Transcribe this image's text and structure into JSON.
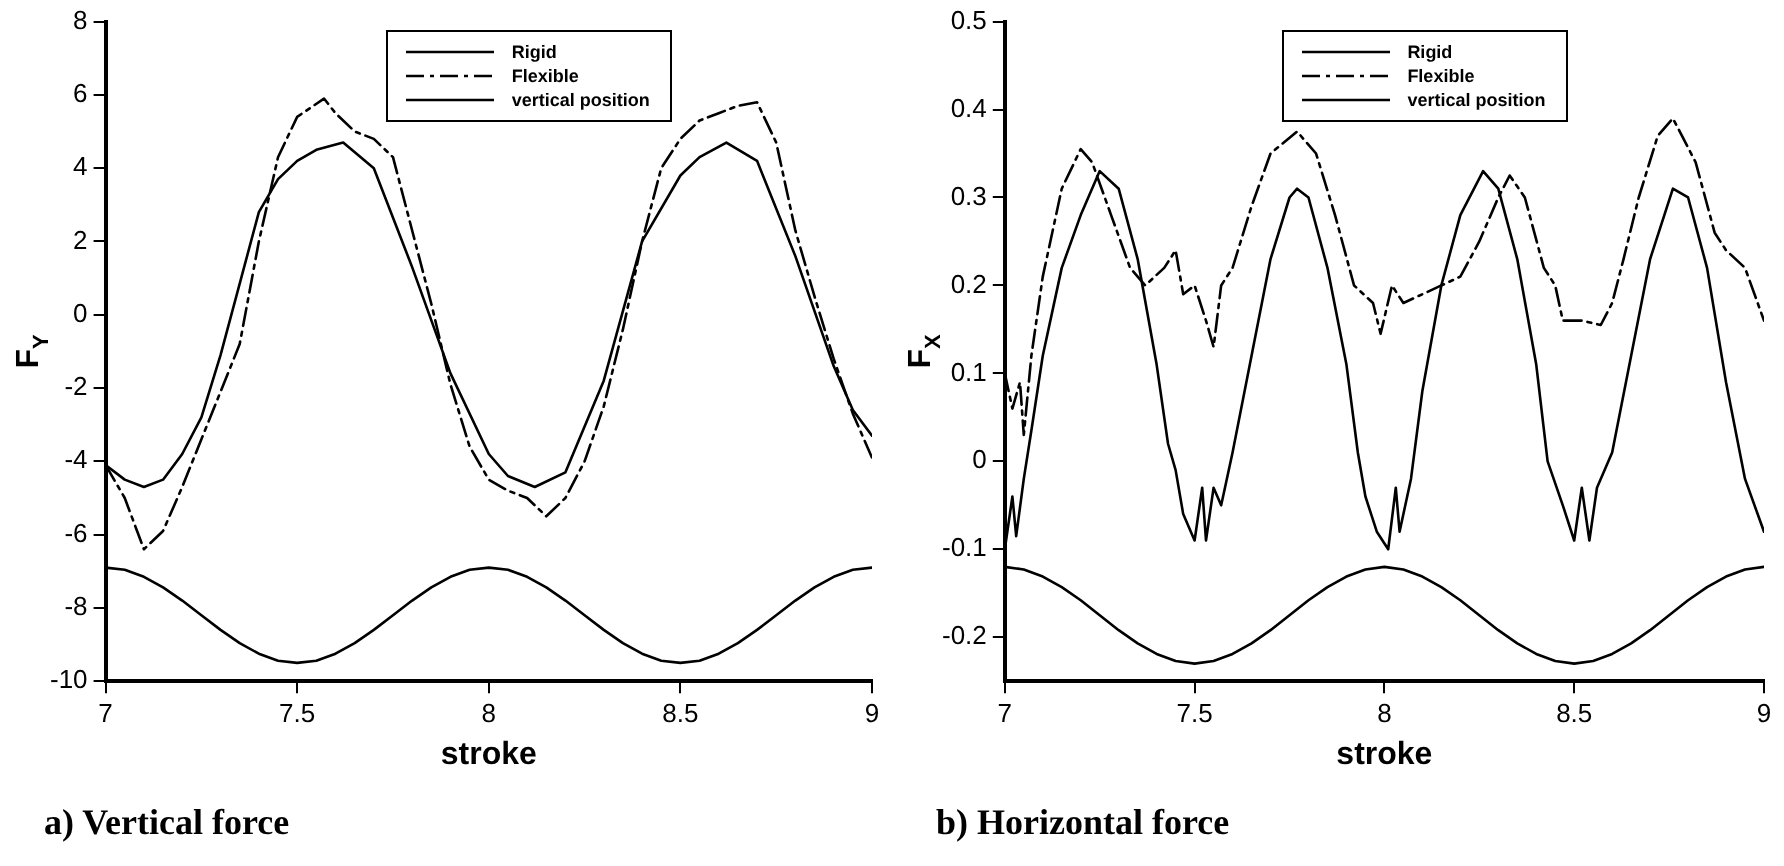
{
  "chart_data": [
    {
      "type": "line",
      "title": "a) Vertical force",
      "xlabel": "stroke",
      "ylabel": "F$_{Y}$",
      "xlim": [
        7,
        9
      ],
      "xticks": [
        7,
        7.5,
        8,
        8.5,
        9
      ],
      "ylim": [
        -10,
        8
      ],
      "yticks": [
        -10,
        -8,
        -6,
        -4,
        -2,
        0,
        2,
        4,
        6,
        8
      ],
      "grid": false,
      "legend": "top",
      "series": [
        {
          "name": "Rigid",
          "color": "#000000",
          "line_style": "solid",
          "x": [
            7,
            7.05,
            7.1,
            7.15,
            7.2,
            7.25,
            7.3,
            7.4,
            7.45,
            7.5,
            7.55,
            7.62,
            7.7,
            7.8,
            7.9,
            8,
            8.05,
            8.12,
            8.2,
            8.3,
            8.4,
            8.5,
            8.55,
            8.62,
            8.7,
            8.8,
            8.9,
            8.95,
            9
          ],
          "values": [
            -4.1,
            -4.5,
            -4.7,
            -4.5,
            -3.8,
            -2.8,
            -1.1,
            2.8,
            3.7,
            4.2,
            4.5,
            4.7,
            4.0,
            1.3,
            -1.6,
            -3.8,
            -4.4,
            -4.7,
            -4.3,
            -1.8,
            2.0,
            3.8,
            4.3,
            4.7,
            4.2,
            1.6,
            -1.4,
            -2.6,
            -3.3
          ]
        },
        {
          "name": "Flexible",
          "color": "#000000",
          "line_style": "dashed",
          "x": [
            7,
            7.05,
            7.1,
            7.15,
            7.2,
            7.3,
            7.35,
            7.4,
            7.45,
            7.5,
            7.57,
            7.6,
            7.65,
            7.7,
            7.75,
            7.8,
            7.85,
            7.9,
            7.95,
            8,
            8.05,
            8.1,
            8.15,
            8.2,
            8.25,
            8.3,
            8.35,
            8.4,
            8.45,
            8.5,
            8.55,
            8.6,
            8.65,
            8.7,
            8.75,
            8.8,
            8.85,
            8.9,
            8.95,
            9
          ],
          "values": [
            -4.1,
            -5.0,
            -6.4,
            -5.9,
            -4.7,
            -2.1,
            -0.8,
            2.0,
            4.3,
            5.4,
            5.9,
            5.5,
            5.0,
            4.8,
            4.3,
            2.3,
            0.3,
            -1.9,
            -3.6,
            -4.5,
            -4.8,
            -5.0,
            -5.5,
            -5.0,
            -4.0,
            -2.5,
            -0.4,
            2.0,
            4.0,
            4.8,
            5.3,
            5.5,
            5.7,
            5.8,
            4.7,
            2.3,
            0.5,
            -1.2,
            -2.7,
            -3.9
          ]
        },
        {
          "name": "vertical position",
          "color": "#000000",
          "line_style": "solid",
          "x": [
            7,
            7.05,
            7.1,
            7.15,
            7.2,
            7.25,
            7.3,
            7.35,
            7.4,
            7.45,
            7.5,
            7.55,
            7.6,
            7.65,
            7.7,
            7.75,
            7.8,
            7.85,
            7.9,
            7.95,
            8,
            8.05,
            8.1,
            8.15,
            8.2,
            8.25,
            8.3,
            8.35,
            8.4,
            8.45,
            8.5,
            8.55,
            8.6,
            8.65,
            8.7,
            8.75,
            8.8,
            8.85,
            8.9,
            8.95,
            9
          ],
          "values": [
            -6.9,
            -6.96,
            -7.15,
            -7.44,
            -7.8,
            -8.2,
            -8.6,
            -8.96,
            -9.25,
            -9.44,
            -9.5,
            -9.44,
            -9.25,
            -8.96,
            -8.6,
            -8.2,
            -7.8,
            -7.44,
            -7.15,
            -6.96,
            -6.9,
            -6.96,
            -7.15,
            -7.44,
            -7.8,
            -8.2,
            -8.6,
            -8.96,
            -9.25,
            -9.44,
            -9.5,
            -9.44,
            -9.25,
            -8.96,
            -8.6,
            -8.2,
            -7.8,
            -7.44,
            -7.15,
            -6.96,
            -6.9
          ]
        }
      ]
    },
    {
      "type": "line",
      "title": "b) Horizontal force",
      "xlabel": "stroke",
      "ylabel": "F$_{X}$",
      "xlim": [
        7,
        9
      ],
      "xticks": [
        7,
        7.5,
        8,
        8.5,
        9
      ],
      "ylim": [
        -0.25,
        0.5
      ],
      "yticks": [
        -0.2,
        -0.1,
        0,
        0.1,
        0.2,
        0.3,
        0.4,
        0.5
      ],
      "grid": false,
      "legend": "top",
      "series": [
        {
          "name": "Rigid",
          "color": "#000000",
          "line_style": "solid",
          "x": [
            7,
            7.02,
            7.03,
            7.05,
            7.07,
            7.1,
            7.15,
            7.2,
            7.25,
            7.3,
            7.35,
            7.4,
            7.43,
            7.45,
            7.47,
            7.5,
            7.52,
            7.53,
            7.55,
            7.57,
            7.6,
            7.65,
            7.7,
            7.75,
            7.77,
            7.8,
            7.85,
            7.9,
            7.93,
            7.95,
            7.98,
            8.01,
            8.03,
            8.04,
            8.07,
            8.1,
            8.15,
            8.2,
            8.26,
            8.3,
            8.35,
            8.4,
            8.43,
            8.47,
            8.5,
            8.52,
            8.54,
            8.56,
            8.6,
            8.65,
            8.7,
            8.76,
            8.8,
            8.85,
            8.9,
            8.95,
            9
          ],
          "values": [
            -0.1,
            -0.04,
            -0.085,
            -0.02,
            0.035,
            0.12,
            0.22,
            0.28,
            0.33,
            0.31,
            0.23,
            0.11,
            0.02,
            -0.01,
            -0.06,
            -0.09,
            -0.03,
            -0.09,
            -0.03,
            -0.05,
            0.01,
            0.12,
            0.23,
            0.3,
            0.31,
            0.3,
            0.22,
            0.11,
            0.01,
            -0.04,
            -0.08,
            -0.1,
            -0.03,
            -0.08,
            -0.02,
            0.08,
            0.2,
            0.28,
            0.33,
            0.31,
            0.23,
            0.11,
            0.0,
            -0.05,
            -0.09,
            -0.03,
            -0.09,
            -0.03,
            0.01,
            0.12,
            0.23,
            0.31,
            0.3,
            0.22,
            0.09,
            -0.02,
            -0.08
          ]
        },
        {
          "name": "Flexible",
          "color": "#000000",
          "line_style": "dashed",
          "x": [
            7,
            7.02,
            7.04,
            7.05,
            7.07,
            7.1,
            7.15,
            7.2,
            7.23,
            7.28,
            7.33,
            7.37,
            7.42,
            7.45,
            7.47,
            7.5,
            7.53,
            7.55,
            7.57,
            7.6,
            7.65,
            7.7,
            7.77,
            7.82,
            7.87,
            7.92,
            7.97,
            7.99,
            8.02,
            8.05,
            8.1,
            8.15,
            8.2,
            8.25,
            8.3,
            8.33,
            8.37,
            8.42,
            8.45,
            8.47,
            8.52,
            8.57,
            8.6,
            8.63,
            8.67,
            8.72,
            8.76,
            8.82,
            8.87,
            8.9,
            8.95,
            9
          ],
          "values": [
            0.1,
            0.06,
            0.09,
            0.03,
            0.12,
            0.21,
            0.31,
            0.355,
            0.34,
            0.28,
            0.22,
            0.2,
            0.22,
            0.24,
            0.19,
            0.2,
            0.16,
            0.13,
            0.2,
            0.22,
            0.29,
            0.35,
            0.375,
            0.35,
            0.28,
            0.2,
            0.18,
            0.145,
            0.2,
            0.18,
            0.19,
            0.2,
            0.21,
            0.25,
            0.3,
            0.325,
            0.3,
            0.22,
            0.2,
            0.16,
            0.16,
            0.155,
            0.18,
            0.23,
            0.3,
            0.37,
            0.39,
            0.34,
            0.26,
            0.24,
            0.22,
            0.16
          ]
        },
        {
          "name": "vertical position",
          "color": "#000000",
          "line_style": "solid",
          "x": [
            7,
            7.05,
            7.1,
            7.15,
            7.2,
            7.25,
            7.3,
            7.35,
            7.4,
            7.45,
            7.5,
            7.55,
            7.6,
            7.65,
            7.7,
            7.75,
            7.8,
            7.85,
            7.9,
            7.95,
            8,
            8.05,
            8.1,
            8.15,
            8.2,
            8.25,
            8.3,
            8.35,
            8.4,
            8.45,
            8.5,
            8.55,
            8.6,
            8.65,
            8.7,
            8.75,
            8.8,
            8.85,
            8.9,
            8.95,
            9
          ],
          "values": [
            -0.12,
            -0.123,
            -0.131,
            -0.143,
            -0.158,
            -0.175,
            -0.192,
            -0.207,
            -0.219,
            -0.227,
            -0.23,
            -0.227,
            -0.219,
            -0.207,
            -0.192,
            -0.175,
            -0.158,
            -0.143,
            -0.131,
            -0.123,
            -0.12,
            -0.123,
            -0.131,
            -0.143,
            -0.158,
            -0.175,
            -0.192,
            -0.207,
            -0.219,
            -0.227,
            -0.23,
            -0.227,
            -0.219,
            -0.207,
            -0.192,
            -0.175,
            -0.158,
            -0.143,
            -0.131,
            -0.123,
            -0.12
          ]
        }
      ]
    }
  ]
}
